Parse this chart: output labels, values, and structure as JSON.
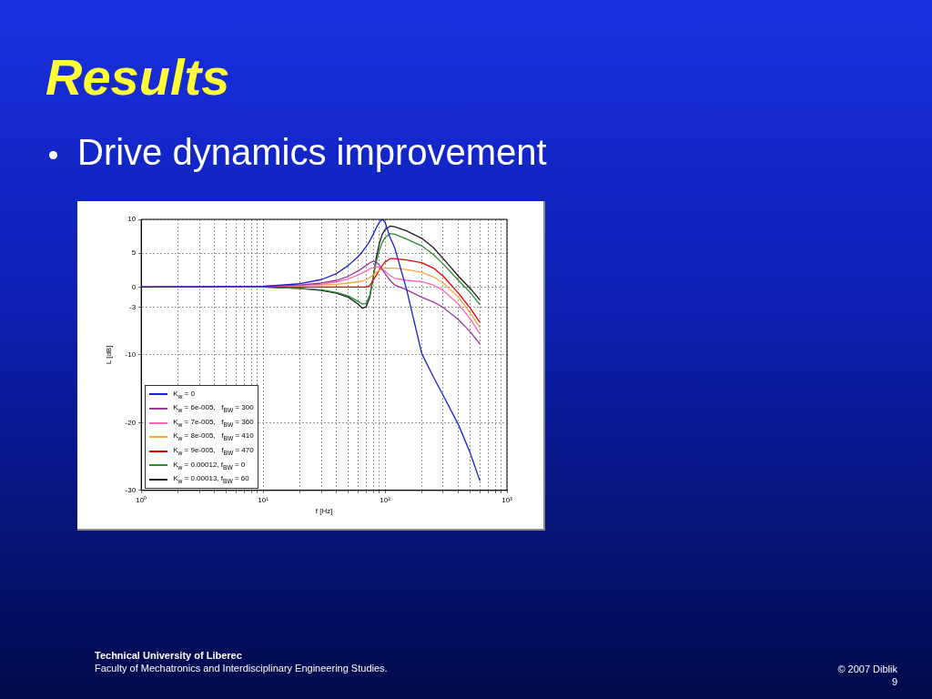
{
  "chart_data": {
    "type": "line",
    "title": "Results",
    "subtitle": "Drive dynamics improvement",
    "xlabel": "f [Hz]",
    "ylabel": "L [dB]",
    "log": "x",
    "xlim": [
      1,
      1000
    ],
    "ylim": [
      -30,
      10
    ],
    "xticks": [
      {
        "value": 1,
        "label": "10⁰"
      },
      {
        "value": 2,
        "label": null
      },
      {
        "value": 3,
        "label": null
      },
      {
        "value": 4,
        "label": null
      },
      {
        "value": 5,
        "label": null
      },
      {
        "value": 6,
        "label": null
      },
      {
        "value": 7,
        "label": null
      },
      {
        "value": 8,
        "label": null
      },
      {
        "value": 9,
        "label": null
      },
      {
        "value": 10,
        "label": "10¹"
      },
      {
        "value": 20,
        "label": null
      },
      {
        "value": 30,
        "label": null
      },
      {
        "value": 40,
        "label": null
      },
      {
        "value": 50,
        "label": null
      },
      {
        "value": 60,
        "label": null
      },
      {
        "value": 70,
        "label": null
      },
      {
        "value": 80,
        "label": null
      },
      {
        "value": 90,
        "label": null
      },
      {
        "value": 100,
        "label": "10²"
      },
      {
        "value": 200,
        "label": null
      },
      {
        "value": 300,
        "label": null
      },
      {
        "value": 400,
        "label": null
      },
      {
        "value": 500,
        "label": null
      },
      {
        "value": 600,
        "label": null
      },
      {
        "value": 700,
        "label": null
      },
      {
        "value": 800,
        "label": null
      },
      {
        "value": 900,
        "label": null
      },
      {
        "value": 1000,
        "label": "10³"
      }
    ],
    "yticks": [
      -30,
      -20,
      -10,
      -3,
      0,
      5,
      10
    ],
    "grid": true,
    "legend": "bottom left",
    "marker": "none",
    "line_style": "solid",
    "x": [
      1,
      10,
      20,
      30,
      40,
      50,
      60,
      65,
      70,
      75,
      80,
      85,
      90,
      95,
      100,
      110,
      120,
      150,
      200,
      250,
      300,
      400,
      500,
      600
    ],
    "series": [
      {
        "name": "K$_{w}$ = 0",
        "color": "#1c1cd4",
        "values": [
          0,
          0.1,
          0.5,
          1.1,
          2,
          3.2,
          4.5,
          5.2,
          6,
          6.8,
          7.8,
          8.8,
          9.6,
          10,
          9.6,
          7.3,
          5.8,
          -0.3,
          -9.8,
          -13.3,
          -16,
          -20.3,
          -24.5,
          -28.6
        ]
      },
      {
        "name": "K$_{w}$ = 6e-005,   f$_{BW}$ = 300",
        "color": "#9b3a9b",
        "values": [
          0,
          0.1,
          0.3,
          0.6,
          1,
          1.6,
          2.4,
          2.8,
          3.2,
          3.6,
          3.8,
          3.7,
          3.2,
          2.6,
          2,
          1,
          0.3,
          -0.4,
          -1.5,
          -2.2,
          -3,
          -4.8,
          -6.6,
          -8.4
        ]
      },
      {
        "name": "K$_{w}$ = 7e-005,   f$_{BW}$ = 360",
        "color": "#ff66b2",
        "values": [
          0,
          0.1,
          0.2,
          0.4,
          0.8,
          1.2,
          1.8,
          2.1,
          2.4,
          2.7,
          2.9,
          3,
          2.9,
          2.6,
          2.3,
          1.7,
          1.3,
          1,
          0.8,
          0.3,
          -0.5,
          -2.5,
          -4.7,
          -6.9
        ]
      },
      {
        "name": "K$_{w}$ = 8e-005,   f$_{BW}$ = 410",
        "color": "#ffa640",
        "values": [
          0,
          0.1,
          0.2,
          0.3,
          0.4,
          0.6,
          0.8,
          0.9,
          1.1,
          1.4,
          1.8,
          2.2,
          2.5,
          2.7,
          2.8,
          2.8,
          2.8,
          2.6,
          2.2,
          1.5,
          0.6,
          -1.5,
          -3.8,
          -6
        ]
      },
      {
        "name": "K$_{w}$ = 9e-005,   f$_{BW}$ = 470",
        "color": "#e60000",
        "values": [
          0,
          0,
          0,
          0,
          0,
          0,
          0,
          0,
          0,
          0.2,
          1,
          1.8,
          2.6,
          3.2,
          3.7,
          4.2,
          4.2,
          4,
          3.6,
          2.8,
          1.6,
          -0.9,
          -3.1,
          -5.2
        ]
      },
      {
        "name": "K$_{w}$ = 0.00012, f$_{BW}$ = 0",
        "color": "#2e8b2e",
        "values": [
          0,
          0,
          -0.2,
          -0.4,
          -0.8,
          -1.3,
          -2.1,
          -2.5,
          -2.4,
          -1.2,
          1.5,
          3.8,
          5.5,
          6.6,
          7.3,
          7.9,
          7.8,
          7.1,
          6.1,
          4.8,
          3.4,
          1,
          -0.8,
          -2.6
        ]
      },
      {
        "name": "K$_{w}$ = 0.00013, f$_{BW}$ = 60",
        "color": "#1a1a1a",
        "values": [
          0,
          0,
          -0.2,
          -0.5,
          -0.9,
          -1.5,
          -2.5,
          -3.1,
          -2.9,
          -1.5,
          1.5,
          4.5,
          6.5,
          7.8,
          8.5,
          9,
          8.9,
          8.3,
          7.2,
          5.8,
          4.2,
          1.6,
          -0.2,
          -1.9
        ]
      }
    ],
    "annotations": [
      "Technical University of Liberec",
      "Faculty of Mechatronics and Interdisciplinary Engineering Studies.",
      "© 2007 Diblik",
      "9"
    ]
  }
}
